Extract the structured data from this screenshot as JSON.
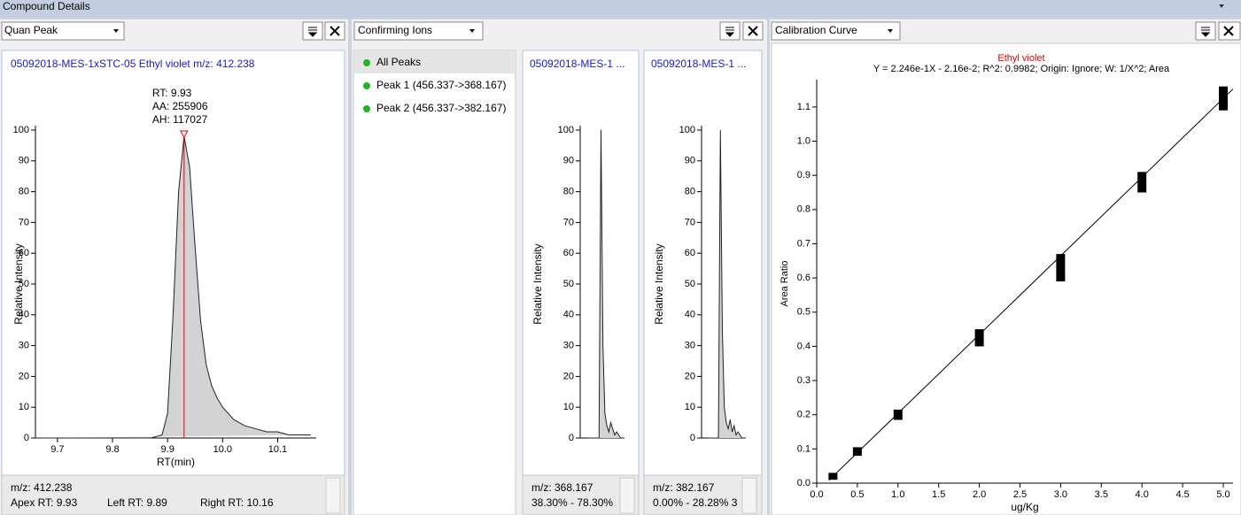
{
  "window_title": "Compound Details",
  "toolbars": [
    "Quan Peak",
    "Confirming Ions",
    "Calibration Curve"
  ],
  "ion_list": [
    "All Peaks",
    "Peak 1 (456.337->368.167)",
    "Peak 2 (456.337->382.167)"
  ],
  "quan_footer": [
    "m/z: 412.238",
    "Apex RT: 9.93",
    "Left RT: 9.89",
    "Right RT: 10.16"
  ],
  "ion_footers": [
    [
      "m/z: 368.167",
      "38.30% - 78.30%"
    ],
    [
      "m/z: 382.167",
      "0.00% - 28.28% 3"
    ]
  ],
  "chart_data": [
    {
      "type": "peak",
      "title": "05092018-MES-1xSTC-05   Ethyl violet   m/z: 412.238",
      "annotations": [
        "RT: 9.93",
        "AA: 255906",
        "AH: 117027"
      ],
      "xlabel": "RT(min)",
      "ylabel": "Relative Intensity",
      "color": "#d3d3d3",
      "x": [
        9.66,
        9.7,
        9.8,
        9.87,
        9.89,
        9.9,
        9.91,
        9.92,
        9.93,
        9.94,
        9.95,
        9.96,
        9.97,
        9.98,
        9.99,
        10.0,
        10.02,
        10.04,
        10.06,
        10.08,
        10.1,
        10.12,
        10.14,
        10.16
      ],
      "values": [
        0,
        0,
        0,
        0,
        1,
        8,
        40,
        80,
        98,
        88,
        62,
        38,
        24,
        17,
        13,
        10,
        6,
        4,
        3,
        2,
        2,
        1,
        1,
        1
      ],
      "xlim": [
        9.66,
        10.17
      ],
      "ylim": [
        0,
        100
      ],
      "xticks": [
        9.7,
        9.8,
        9.9,
        {
          "value": 10.0,
          "label": "10.0"
        },
        10.1
      ],
      "yticks": [
        0,
        10,
        20,
        30,
        40,
        50,
        60,
        70,
        80,
        90,
        100
      ]
    },
    {
      "type": "spike",
      "title": "05092018-MES-1 ...",
      "ylabel": "Relative Intensity",
      "color": "#d3d3d3",
      "values": [
        0,
        0,
        0,
        0,
        0,
        0,
        0,
        100,
        30,
        8,
        4,
        2,
        5,
        3,
        1,
        2,
        1,
        0,
        0,
        0
      ],
      "ylim": [
        0,
        100
      ],
      "yticks": [
        0,
        10,
        20,
        30,
        40,
        50,
        60,
        70,
        80,
        90,
        100
      ]
    },
    {
      "type": "spike",
      "title": "05092018-MES-1 ...",
      "ylabel": "Relative Intensity",
      "color": "#d3d3d3",
      "values": [
        0,
        0,
        0,
        0,
        0,
        0,
        100,
        35,
        10,
        5,
        3,
        6,
        2,
        4,
        1,
        2,
        1,
        0,
        0,
        0
      ],
      "ylim": [
        0,
        100
      ],
      "yticks": [
        0,
        10,
        20,
        30,
        40,
        50,
        60,
        70,
        80,
        90,
        100
      ]
    },
    {
      "type": "range",
      "title": "Ethyl violet",
      "subtitle": "Y = 2.246e-1X - 2.16e-2; R^2: 0.9982; Origin: Ignore; W: 1/X^2; Area",
      "xlabel": "ug/Kg",
      "ylabel": "Area Ratio",
      "color": "#000000",
      "x": [
        0.2,
        0.5,
        1.0,
        2.0,
        3.0,
        4.0,
        5.0
      ],
      "low": [
        0.01,
        0.08,
        0.185,
        0.4,
        0.59,
        0.85,
        1.09
      ],
      "high": [
        0.03,
        0.105,
        0.215,
        0.45,
        0.67,
        0.91,
        1.16
      ],
      "xlim": [
        0,
        5.12
      ],
      "ylim": [
        0,
        1.167
      ],
      "xticks": [
        {
          "value": 0,
          "label": "0.0"
        },
        0.5,
        {
          "value": 1,
          "label": "1.0"
        },
        1.5,
        {
          "value": 2,
          "label": "2.0"
        },
        2.5,
        {
          "value": 3,
          "label": "3.0"
        },
        3.5,
        {
          "value": 4,
          "label": "4.0"
        },
        4.5,
        {
          "value": 5,
          "label": "5.0"
        }
      ],
      "yticks": [
        {
          "value": 0,
          "label": "0.0"
        },
        0.1,
        0.2,
        0.3,
        0.4,
        0.5,
        0.6,
        0.7,
        0.8,
        0.9,
        {
          "value": 1,
          "label": "1.0"
        },
        1.1
      ]
    }
  ]
}
